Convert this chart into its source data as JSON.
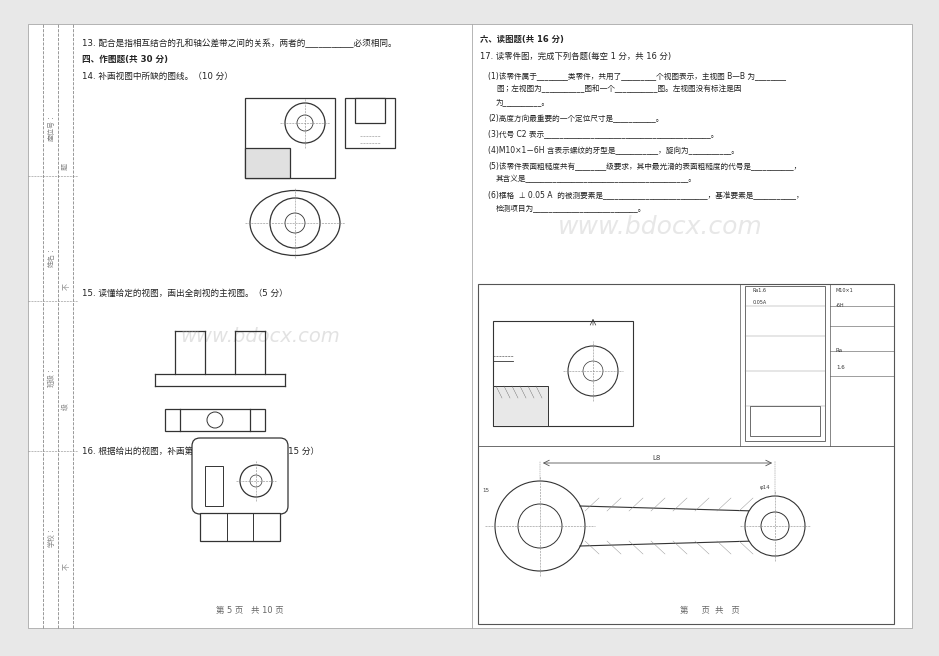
{
  "bg_color": "#e8e8e8",
  "page_bg": "#ffffff",
  "text_color": "#222222",
  "line_color": "#555555",
  "watermark_color": "#d0d0d0",
  "sidebar_color": "#888888",
  "q13": "13. 配合是指相互结合的孔和轴公差带之间的关系，两者的___________必须相同。",
  "q4_header": "四、作图题(共 30 分)",
  "q14": "14. 补画视图中所缺的图线。（10 分）",
  "q15": "15. 读懂给定的视图，画出全剖视的主视图。（5 分）",
  "q16": "16. 根据给出的视图，补画第三视图，并标注尺寸。（15 分）",
  "q6_header": "六、读图题(共 16 分)",
  "q17_header": "17. 读零件图，完成下列各题(每空 1 分，共 16 分)",
  "q17_1a": "(1)该零件属于________类零件，共用了_________个视图表示，主视图 B—B 为________",
  "q17_1b": "图；左视图为___________图和一个___________图。左视图没有标注是因",
  "q17_1c": "为__________。",
  "q17_2": "(2)高度方向最重要的一个定位尺寸是___________。",
  "q17_3": "(3)代号 C2 表示___________________________________________。",
  "q17_4": "(4)M10×1－6H 含表示螺纹的牙型是___________，旋向为___________。",
  "q17_5a": "(5)该零件表面粗糙度共有________级要求，其中最光滑的表面粗糙度的代号是___________，",
  "q17_5b": "其含义是__________________________________________。",
  "q17_6a": "(6)框格  ⊥ 0.05 A  的被测要素是___________________________，基准要素是___________，",
  "q17_6b": "检测项目为___________________________。",
  "footer_left": "第 5 页   共 10 页",
  "footer_right": "第     页  共   页",
  "sidebar_top": "座位号：",
  "sidebar_mid1": "姓名：",
  "sidebar_mid2": "班级：",
  "sidebar_bot": "学校："
}
